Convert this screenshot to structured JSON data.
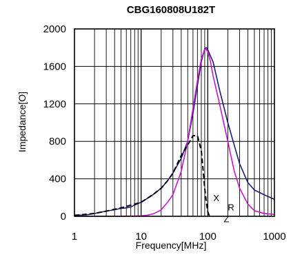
{
  "chart_data": {
    "type": "line",
    "title": "CBG160808U182T",
    "xlabel": "Frequency[MHz]",
    "ylabel": "Impedance[O]",
    "xscale": "log",
    "xlim": [
      1,
      1000
    ],
    "ylim": [
      0,
      2000
    ],
    "xticks": [
      1,
      10,
      100,
      1000
    ],
    "xtick_labels": [
      "1",
      "10",
      "100",
      "1000"
    ],
    "yticks": [
      0,
      400,
      800,
      1200,
      1600,
      2000
    ],
    "ytick_labels": [
      "0",
      "400",
      "800",
      "1200",
      "1600",
      "2000"
    ],
    "grid": true,
    "legend": "none",
    "series": [
      {
        "name": "Z",
        "color": "#1a1a7a",
        "dash": "solid",
        "x": [
          1,
          1.5,
          2,
          3,
          4,
          5,
          6,
          7,
          8,
          10,
          13,
          15,
          20,
          25,
          30,
          40,
          50,
          60,
          70,
          80,
          90,
          95,
          100,
          110,
          120,
          150,
          200,
          300,
          400,
          500,
          700,
          1000
        ],
        "y": [
          10,
          15,
          30,
          55,
          70,
          85,
          90,
          100,
          120,
          150,
          200,
          230,
          300,
          380,
          460,
          620,
          800,
          1100,
          1400,
          1650,
          1790,
          1800,
          1780,
          1710,
          1650,
          1350,
          1000,
          560,
          360,
          280,
          230,
          180
        ]
      },
      {
        "name": "R",
        "color": "#cc11cc",
        "dash": "solid",
        "x": [
          1,
          5,
          10,
          12,
          15,
          18,
          20,
          25,
          30,
          40,
          50,
          60,
          70,
          80,
          90,
          95,
          100,
          110,
          120,
          150,
          200,
          250,
          300,
          400,
          500,
          700,
          1000
        ],
        "y": [
          0,
          0,
          5,
          10,
          25,
          50,
          70,
          150,
          230,
          480,
          800,
          1150,
          1450,
          1680,
          1780,
          1780,
          1760,
          1650,
          1500,
          1200,
          800,
          480,
          300,
          130,
          60,
          30,
          20
        ]
      },
      {
        "name": "X",
        "color": "#000000",
        "dash": "dashed",
        "x": [
          1,
          2,
          3,
          5,
          10,
          15,
          20,
          25,
          30,
          40,
          50,
          60,
          70,
          80,
          85,
          90,
          95,
          100,
          105,
          110
        ],
        "y": [
          10,
          30,
          55,
          90,
          150,
          230,
          300,
          380,
          460,
          650,
          760,
          860,
          860,
          700,
          500,
          300,
          150,
          50,
          10,
          0
        ]
      }
    ]
  }
}
